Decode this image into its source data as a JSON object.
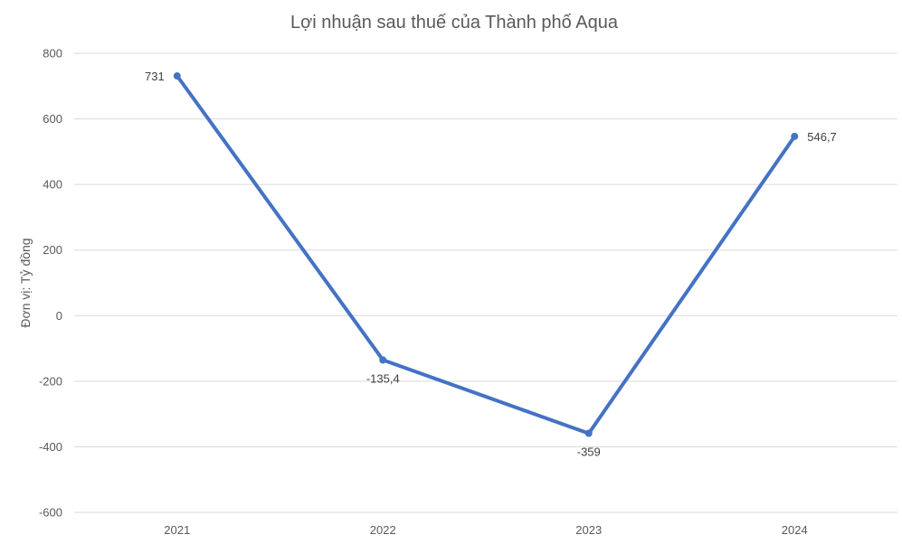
{
  "chart_data": {
    "type": "line",
    "title": "Lợi nhuận sau thuế của Thành phố Aqua",
    "xlabel": "",
    "ylabel": "Đơn vị: Tỷ đồng",
    "categories": [
      "2021",
      "2022",
      "2023",
      "2024"
    ],
    "series": [
      {
        "values": [
          731,
          -135.4,
          -359,
          546.7
        ],
        "labels": [
          "731",
          "-135,4",
          "-359",
          "546,7"
        ],
        "color": "#4472c4"
      }
    ],
    "ylim": [
      -600,
      800
    ],
    "yticks": [
      800,
      600,
      400,
      200,
      0,
      -200,
      -400,
      -600
    ],
    "ytick_labels": [
      "800",
      "600",
      "400",
      "200",
      "0",
      "-200",
      "-400",
      "-600"
    ],
    "grid": true,
    "legend": "none"
  }
}
